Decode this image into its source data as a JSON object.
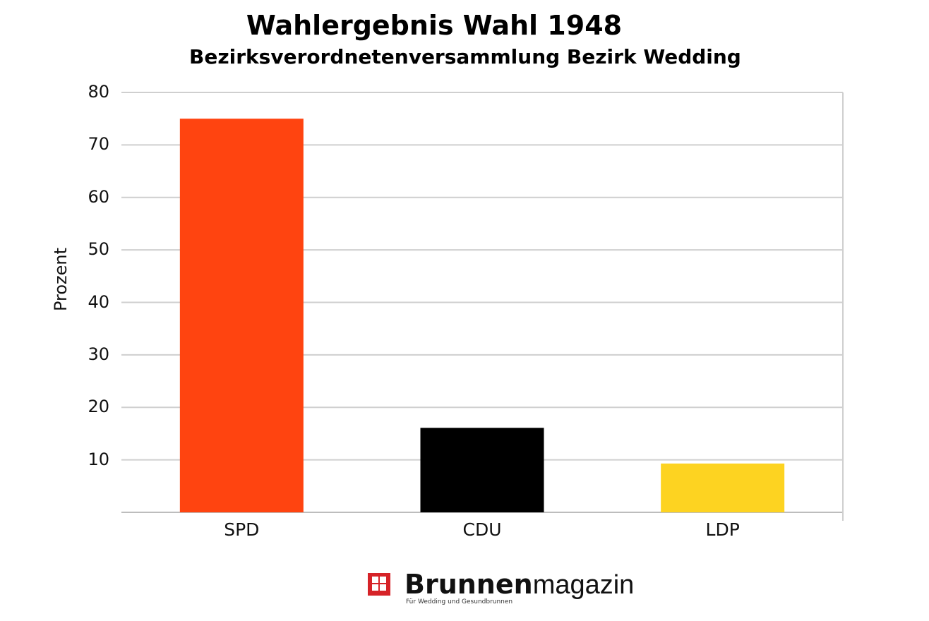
{
  "chart_data": {
    "type": "bar",
    "title": "Wahlergebnis Wahl 1948",
    "subtitle": "Bezirksverordnetenversammlung Bezirk Wedding",
    "categories": [
      "SPD",
      "CDU",
      "LDP"
    ],
    "values": [
      75,
      16.1,
      9.3
    ],
    "colors": [
      "#ff4410",
      "#000000",
      "#fdd321"
    ],
    "xlabel": "",
    "ylabel": "Prozent",
    "ylim": [
      0,
      80
    ],
    "yticks": [
      10,
      20,
      30,
      40,
      50,
      60,
      70,
      80
    ],
    "grid": true,
    "legend": null
  },
  "branding": {
    "logo_bold": "Brunnen",
    "logo_light": "magazin",
    "tagline": "Für Wedding und Gesundbrunnen",
    "logo_color": "#d62328"
  }
}
